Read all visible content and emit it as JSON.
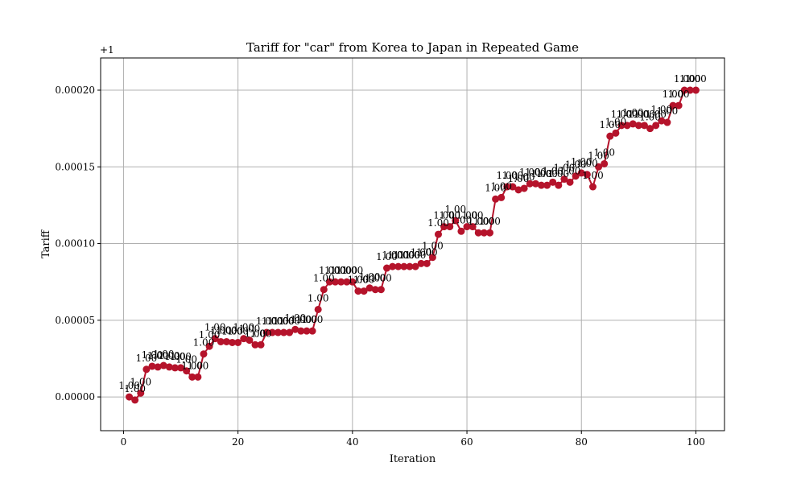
{
  "chart_data": {
    "type": "line",
    "title": "Tariff for \"car\" from Korea to Japan in Repeated Game",
    "xlabel": "Iteration",
    "ylabel": "Tariff",
    "y_offset_label": "+1",
    "xlim": [
      -4,
      105
    ],
    "ylim": [
      -2.2e-05,
      0.000221
    ],
    "xticks": [
      0,
      20,
      40,
      60,
      80,
      100
    ],
    "yticks": [
      0.0,
      5e-05,
      0.0001,
      0.00015,
      0.0002
    ],
    "ytick_labels": [
      "0.00000",
      "0.00005",
      "0.00010",
      "0.00015",
      "0.00020"
    ],
    "grid": true,
    "color": "#b5132b",
    "point_label": "1.00",
    "series": [
      {
        "x": [
          1,
          2,
          3,
          4,
          5,
          6,
          7,
          8,
          9,
          10,
          11,
          12,
          13,
          14,
          15,
          16,
          17,
          18,
          19,
          20,
          21,
          22,
          23,
          24,
          25,
          26,
          27,
          28,
          29,
          30,
          31,
          32,
          33,
          34,
          35,
          36,
          37,
          38,
          39,
          40,
          41,
          42,
          43,
          44,
          45,
          46,
          47,
          48,
          49,
          50,
          51,
          52,
          53,
          54,
          55,
          56,
          57,
          58,
          59,
          60,
          61,
          62,
          63,
          64,
          65,
          66,
          67,
          68,
          69,
          70,
          71,
          72,
          73,
          74,
          75,
          76,
          77,
          78,
          79,
          80,
          81,
          82,
          83,
          84,
          85,
          86,
          87,
          88,
          89,
          90,
          91,
          92,
          93,
          94,
          95,
          96,
          97,
          98,
          99,
          100
        ],
        "y": [
          0.0,
          -2e-06,
          2.5e-06,
          1.8e-05,
          2e-05,
          1.95e-05,
          2.05e-05,
          1.95e-05,
          1.9e-05,
          1.9e-05,
          1.7e-05,
          1.3e-05,
          1.3e-05,
          2.8e-05,
          3.3e-05,
          3.8e-05,
          3.6e-05,
          3.6e-05,
          3.55e-05,
          3.55e-05,
          3.8e-05,
          3.7e-05,
          3.4e-05,
          3.4e-05,
          4.2e-05,
          4.2e-05,
          4.2e-05,
          4.2e-05,
          4.2e-05,
          4.4e-05,
          4.3e-05,
          4.3e-05,
          4.3e-05,
          5.7e-05,
          7e-05,
          7.5e-05,
          7.5e-05,
          7.5e-05,
          7.5e-05,
          7.5e-05,
          6.9e-05,
          6.9e-05,
          7.1e-05,
          7e-05,
          7e-05,
          8.4e-05,
          8.5e-05,
          8.5e-05,
          8.5e-05,
          8.5e-05,
          8.5e-05,
          8.7e-05,
          8.7e-05,
          9.1e-05,
          0.000106,
          0.000111,
          0.000111,
          0.000115,
          0.000108,
          0.000111,
          0.000111,
          0.000107,
          0.000107,
          0.000107,
          0.000129,
          0.00013,
          0.000137,
          0.000137,
          0.000135,
          0.000136,
          0.000139,
          0.000139,
          0.000138,
          0.000138,
          0.00014,
          0.000138,
          0.000142,
          0.00014,
          0.000144,
          0.000146,
          0.000145,
          0.000137,
          0.00015,
          0.000152,
          0.00017,
          0.000172,
          0.000177,
          0.000177,
          0.000178,
          0.000177,
          0.000177,
          0.000175,
          0.000177,
          0.00018,
          0.000179,
          0.00019,
          0.00019,
          0.0002,
          0.0002,
          0.0002
        ]
      }
    ]
  }
}
